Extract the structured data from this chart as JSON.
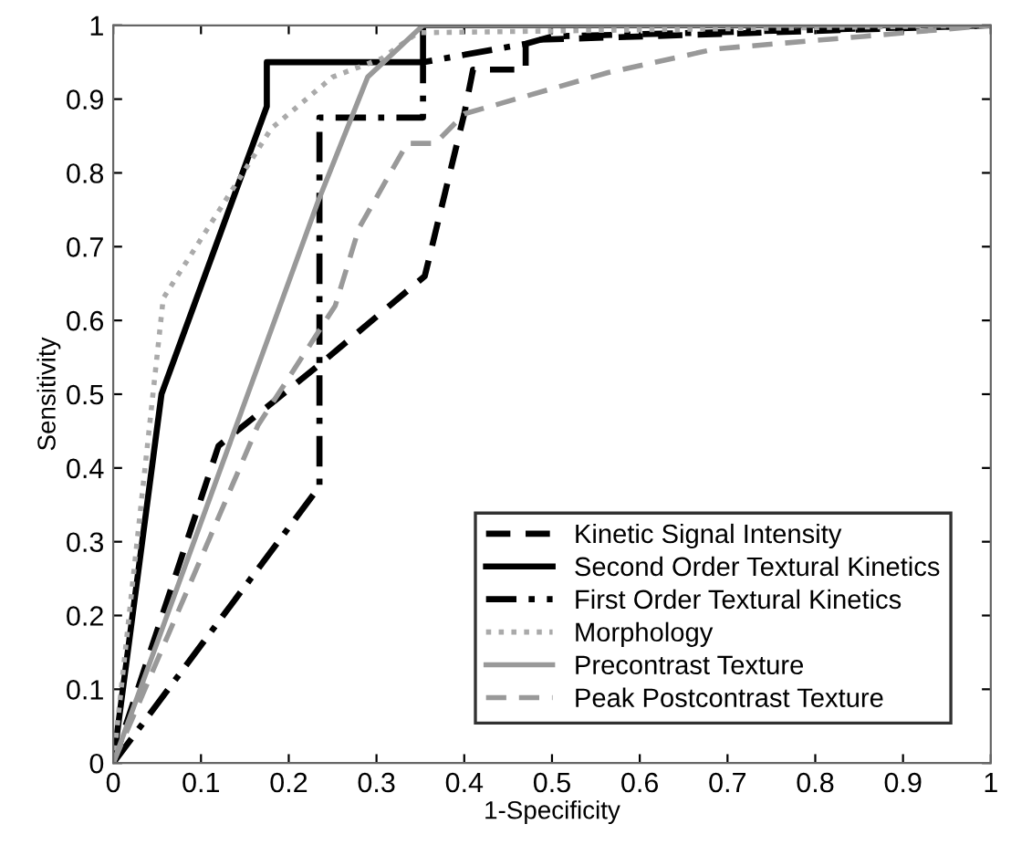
{
  "chart_data": {
    "type": "line",
    "xlabel": "1-Specificity",
    "ylabel": "Sensitivity",
    "xlim": [
      0,
      1
    ],
    "ylim": [
      0,
      1
    ],
    "xticks": [
      0,
      0.1,
      0.2,
      0.3,
      0.4,
      0.5,
      0.6,
      0.7,
      0.8,
      0.9,
      1
    ],
    "yticks": [
      0,
      0.1,
      0.2,
      0.3,
      0.4,
      0.5,
      0.6,
      0.7,
      0.8,
      0.9,
      1
    ],
    "grid": false,
    "legend": "bottom right",
    "marker": "none",
    "series": [
      {
        "name": "Kinetic Signal Intensity",
        "color": "#000000",
        "line_style": "dashed",
        "x": [
          0,
          0.12,
          0.235,
          0.355,
          0.4,
          0.41,
          0.47,
          0.47,
          1
        ],
        "values": [
          0,
          0.43,
          0.54,
          0.66,
          0.88,
          0.94,
          0.94,
          0.98,
          1
        ]
      },
      {
        "name": "Second Order Textural Kinetics",
        "color": "#000000",
        "line_style": "solid",
        "x": [
          0,
          0.055,
          0.175,
          0.175,
          0.353,
          0.353,
          1
        ],
        "values": [
          0,
          0.5,
          0.89,
          0.95,
          0.95,
          1,
          1
        ]
      },
      {
        "name": "First Order Textural Kinetics",
        "color": "#000000",
        "line_style": "dashdot",
        "x": [
          0,
          0.235,
          0.235,
          0.353,
          0.353,
          0.47,
          0.5,
          1
        ],
        "values": [
          0,
          0.375,
          0.875,
          0.875,
          0.95,
          0.975,
          0.985,
          1
        ]
      },
      {
        "name": "Morphology",
        "color": "#aaaaaa",
        "line_style": "dotted",
        "x": [
          0,
          0.057,
          0.18,
          0.25,
          0.306,
          0.347,
          1
        ],
        "values": [
          0,
          0.63,
          0.86,
          0.93,
          0.955,
          0.99,
          1
        ]
      },
      {
        "name": "Precontrast Texture",
        "color": "#999999",
        "line_style": "solid",
        "x": [
          0,
          0.233,
          0.29,
          0.353,
          1
        ],
        "values": [
          0,
          0.76,
          0.93,
          1,
          1
        ]
      },
      {
        "name": "Peak Postcontrast Texture",
        "color": "#999999",
        "line_style": "dashed",
        "x": [
          0,
          0.165,
          0.253,
          0.28,
          0.335,
          0.367,
          0.4,
          0.564,
          0.686,
          0.854,
          1
        ],
        "values": [
          0,
          0.458,
          0.62,
          0.725,
          0.84,
          0.84,
          0.88,
          0.936,
          0.968,
          0.985,
          1
        ]
      }
    ]
  }
}
